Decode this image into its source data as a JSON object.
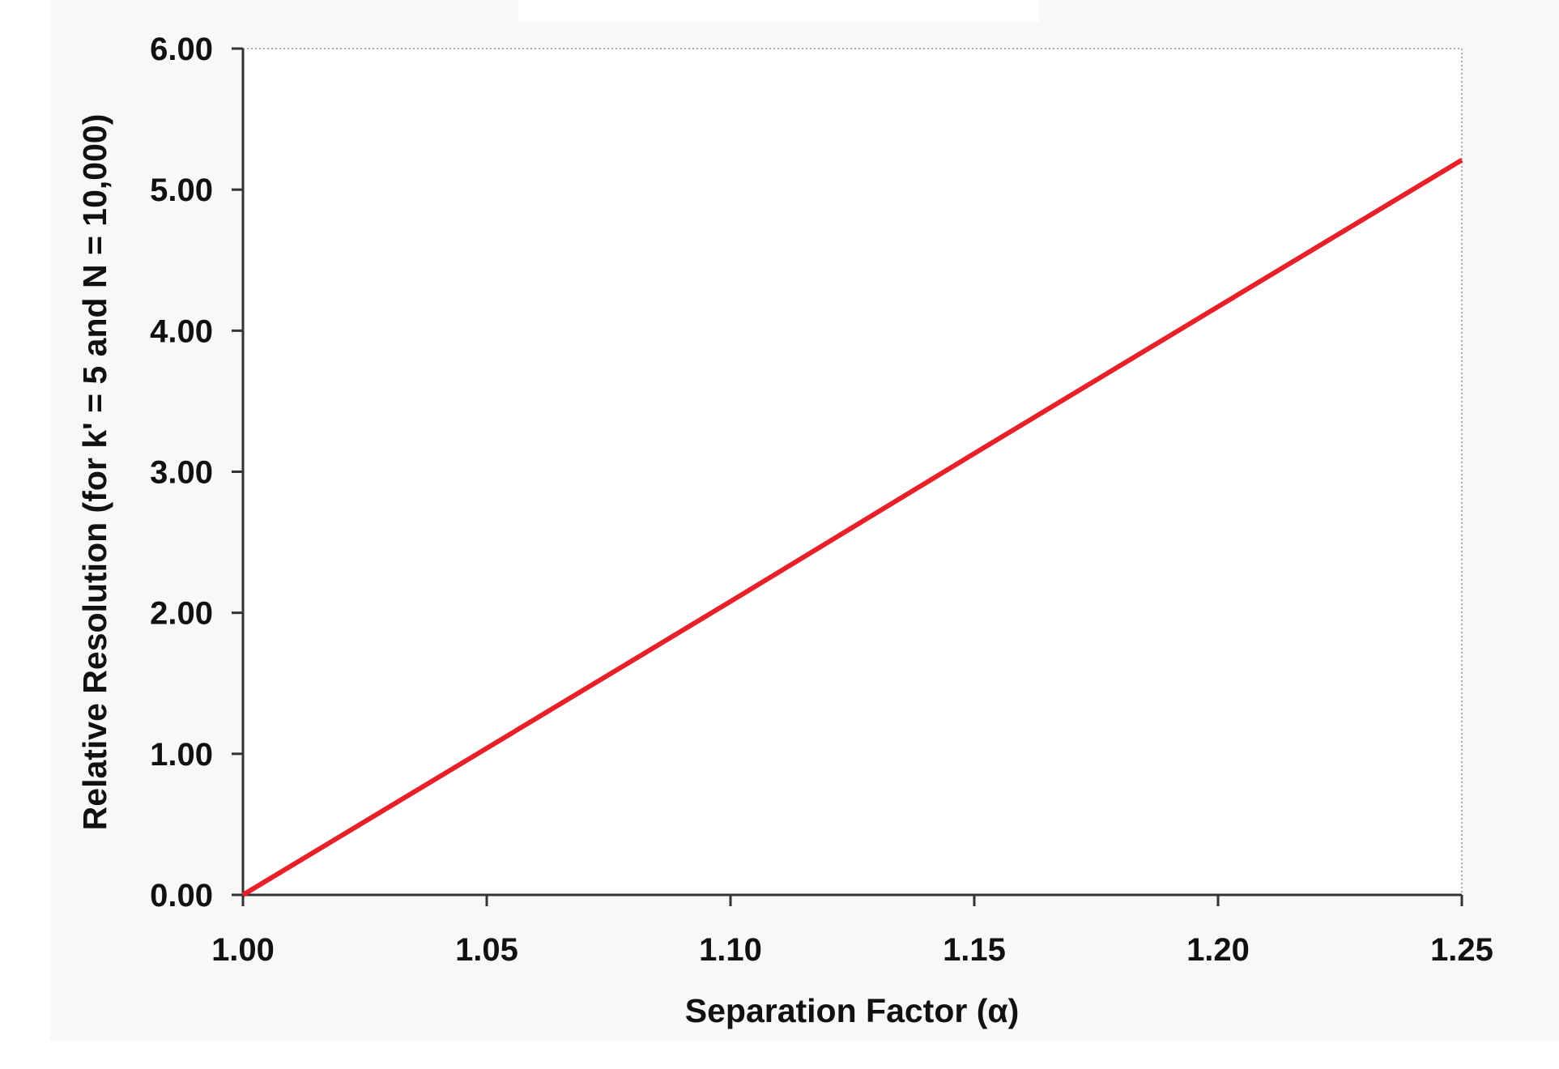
{
  "chart_data": {
    "type": "line",
    "title": "",
    "xlabel": "Separation Factor (α)",
    "ylabel": "Relative Resolution (for k' = 5 and N = 10,000)",
    "xlim": [
      1.0,
      1.25
    ],
    "ylim": [
      0.0,
      6.0
    ],
    "x_ticks": [
      "1.00",
      "1.05",
      "1.10",
      "1.15",
      "1.20",
      "1.25"
    ],
    "y_ticks": [
      "0.00",
      "1.00",
      "2.00",
      "3.00",
      "4.00",
      "5.00",
      "6.00"
    ],
    "grid": false,
    "legend": "none",
    "series": [
      {
        "color": "#e8202a",
        "x": [
          1.0,
          1.05,
          1.1,
          1.15,
          1.2,
          1.25
        ],
        "y": [
          0.0,
          1.04,
          2.08,
          3.13,
          4.17,
          5.21
        ]
      }
    ],
    "colors": {
      "plot_background": "#ffffff",
      "outer_background": "#f8f8f8",
      "axis": "#333333",
      "line": "#e8202a"
    }
  }
}
